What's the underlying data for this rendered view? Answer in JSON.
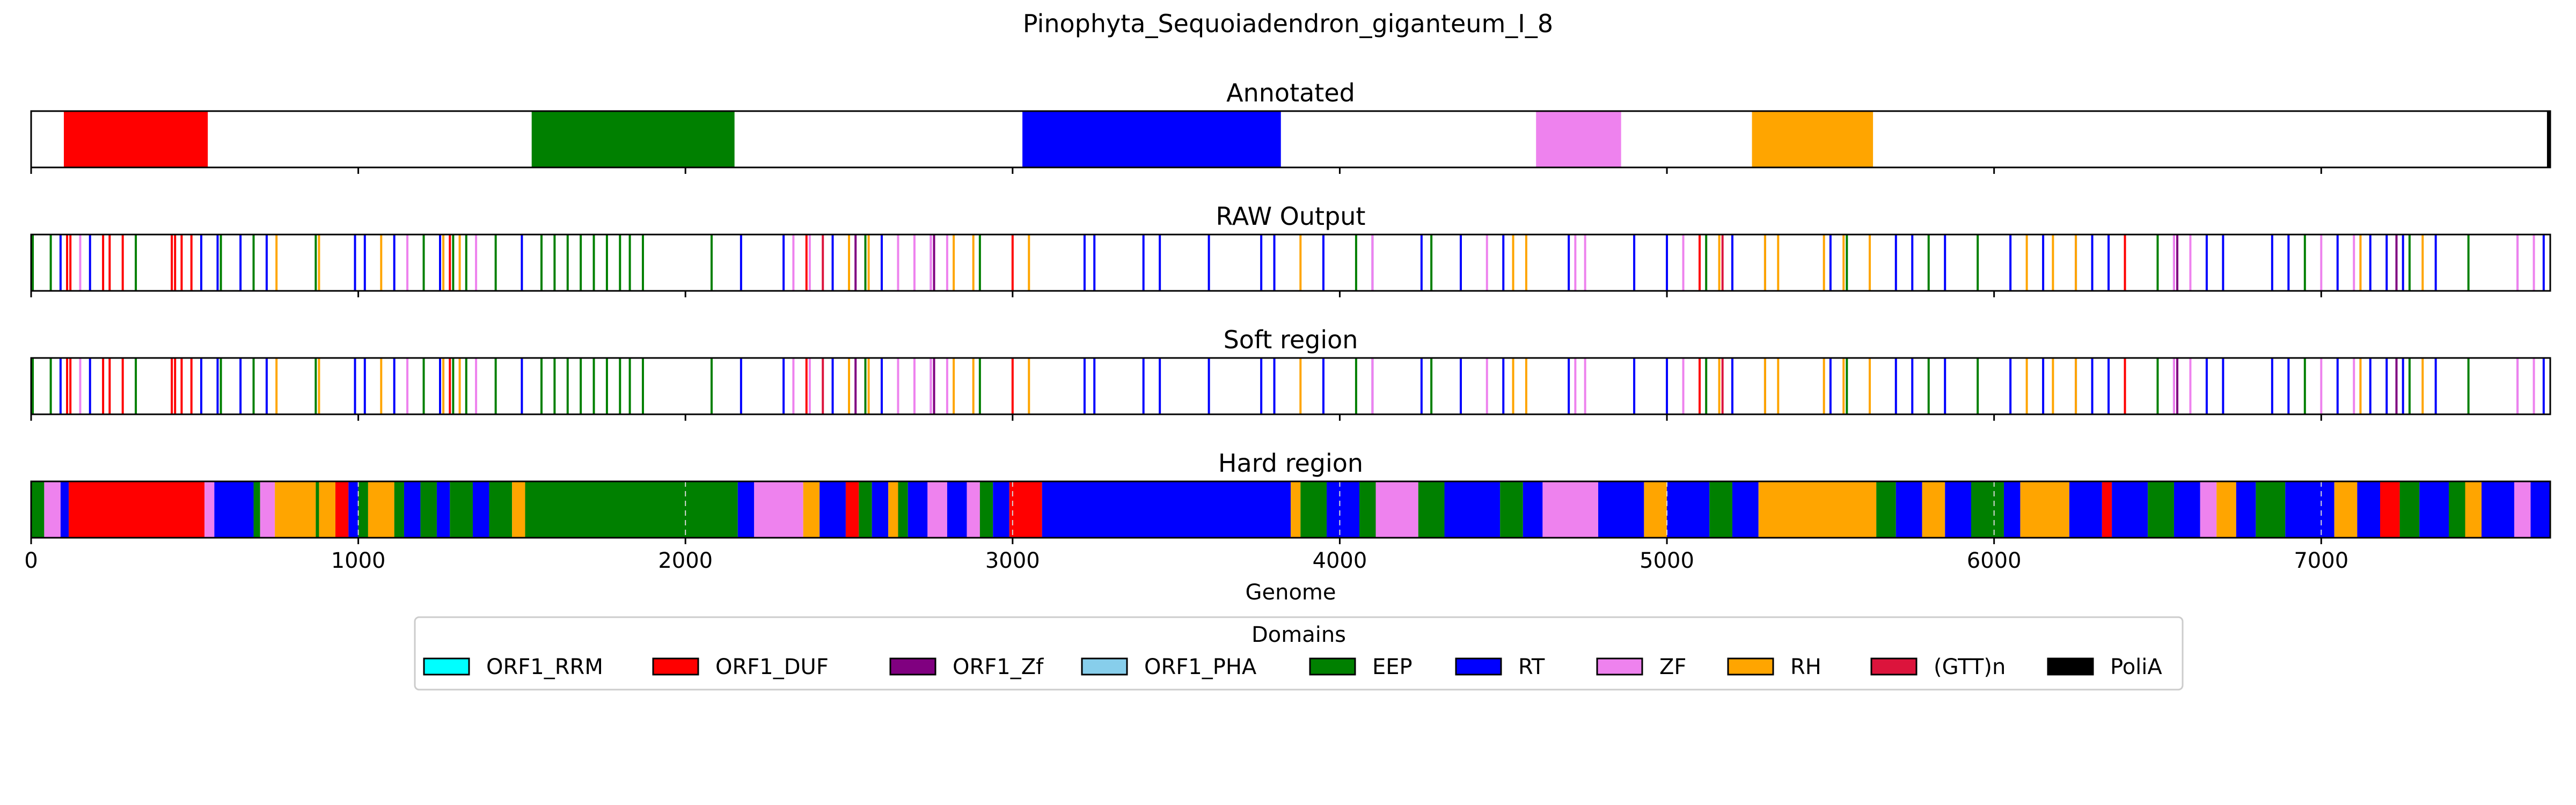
{
  "chart_data": {
    "type": "genome-track",
    "title": "Pinophyta_Sequoiadendron_giganteum_I_8",
    "xlabel": "Genome",
    "xlim": [
      0,
      7700
    ],
    "xticks": [
      0,
      1000,
      2000,
      3000,
      4000,
      5000,
      6000,
      7000
    ],
    "xtick_labels": [
      "0",
      "1000",
      "2000",
      "3000",
      "4000",
      "5000",
      "6000",
      "7000"
    ],
    "colors": {
      "ORF1_RRM": "#00ffff",
      "ORF1_DUF": "#ff0000",
      "ORF1_Zf": "#800080",
      "ORF1_PHA": "#87ceeb",
      "EEP": "#008000",
      "RT": "#0000ff",
      "ZF": "#ee82ee",
      "RH": "#ffa500",
      "(GTT)n": "#dc143c",
      "PoliA": "#000000"
    },
    "legend": {
      "title": "Domains",
      "placement": "bottom-center",
      "entries": [
        "ORF1_RRM",
        "ORF1_DUF",
        "ORF1_Zf",
        "ORF1_PHA",
        "EEP",
        "RT",
        "ZF",
        "RH",
        "(GTT)n",
        "PoliA"
      ]
    },
    "panels": [
      {
        "title": "Annotated",
        "kind": "segments",
        "segments": [
          {
            "domain": "ORF1_DUF",
            "start": 100,
            "end": 540
          },
          {
            "domain": "EEP",
            "start": 1530,
            "end": 2150
          },
          {
            "domain": "RT",
            "start": 3030,
            "end": 3820
          },
          {
            "domain": "ZF",
            "start": 4600,
            "end": 4860
          },
          {
            "domain": "RH",
            "start": 5260,
            "end": 5630
          },
          {
            "domain": "PoliA",
            "start": 7690,
            "end": 7700
          }
        ]
      },
      {
        "title": "RAW Output",
        "kind": "lines",
        "lines": [
          {
            "domain": "EEP",
            "x": [
              5,
              60,
              320,
              580,
              680,
              870,
              1200,
              1290,
              1330,
              1420,
              1560,
              1600,
              1640,
              1680,
              1720,
              1760,
              1800,
              1830,
              1870,
              2080,
              2550,
              2900,
              4050,
              4280,
              5120,
              5550,
              5800,
              5950,
              6500,
              6950,
              7270,
              7450
            ]
          },
          {
            "domain": "RT",
            "x": [
              90,
              180,
              520,
              570,
              640,
              720,
              990,
              1020,
              1110,
              1250,
              1500,
              2170,
              2300,
              2450,
              2600,
              2750,
              3220,
              3250,
              3400,
              3450,
              3600,
              3760,
              3800,
              3950,
              4100,
              4250,
              4370,
              4500,
              4700,
              4900,
              5000,
              5200,
              5300,
              5500,
              5700,
              5750,
              5850,
              6050,
              6150,
              6250,
              6300,
              6350,
              6550,
              6650,
              6700,
              6850,
              6900,
              7050,
              7150,
              7200,
              7250,
              7350,
              7600,
              7680
            ]
          },
          {
            "domain": "ORF1_DUF",
            "x": [
              110,
              120,
              220,
              240,
              280,
              430,
              440,
              460,
              490,
              1280,
              2370,
              3000,
              5100,
              6400
            ]
          },
          {
            "domain": "ZF",
            "x": [
              150,
              1150,
              1360,
              2330,
              2380,
              2650,
              2700,
              2750,
              2800,
              4100,
              4450,
              4720,
              4750,
              5050,
              6550,
              6600,
              7000,
              7100,
              7600,
              7650
            ]
          },
          {
            "domain": "RH",
            "x": [
              750,
              880,
              1070,
              1260,
              1310,
              2500,
              2560,
              2820,
              2880,
              3050,
              3880,
              4530,
              4570,
              5160,
              5300,
              5340,
              5480,
              5540,
              5620,
              6100,
              6180,
              6250,
              7120,
              7310
            ]
          },
          {
            "domain": "ORF1_Zf",
            "x": [
              2520,
              2760,
              6560,
              7230
            ]
          },
          {
            "domain": "(GTT)n",
            "x": [
              2420,
              5170
            ]
          }
        ]
      },
      {
        "title": "Soft region",
        "kind": "lines",
        "same_as": "RAW Output"
      },
      {
        "title": "Hard region",
        "kind": "segments",
        "segments": [
          {
            "domain": "EEP",
            "start": 0,
            "end": 40
          },
          {
            "domain": "ZF",
            "start": 40,
            "end": 90
          },
          {
            "domain": "RT",
            "start": 90,
            "end": 115
          },
          {
            "domain": "ORF1_DUF",
            "start": 115,
            "end": 530
          },
          {
            "domain": "ZF",
            "start": 530,
            "end": 560
          },
          {
            "domain": "RT",
            "start": 560,
            "end": 680
          },
          {
            "domain": "EEP",
            "start": 680,
            "end": 700
          },
          {
            "domain": "ZF",
            "start": 700,
            "end": 745
          },
          {
            "domain": "RH",
            "start": 745,
            "end": 870
          },
          {
            "domain": "EEP",
            "start": 870,
            "end": 880
          },
          {
            "domain": "RH",
            "start": 880,
            "end": 930
          },
          {
            "domain": "ORF1_DUF",
            "start": 930,
            "end": 970
          },
          {
            "domain": "RT",
            "start": 970,
            "end": 1000
          },
          {
            "domain": "EEP",
            "start": 1000,
            "end": 1030
          },
          {
            "domain": "RH",
            "start": 1030,
            "end": 1110
          },
          {
            "domain": "EEP",
            "start": 1110,
            "end": 1140
          },
          {
            "domain": "RT",
            "start": 1140,
            "end": 1190
          },
          {
            "domain": "EEP",
            "start": 1190,
            "end": 1240
          },
          {
            "domain": "RT",
            "start": 1240,
            "end": 1280
          },
          {
            "domain": "EEP",
            "start": 1280,
            "end": 1350
          },
          {
            "domain": "RT",
            "start": 1350,
            "end": 1400
          },
          {
            "domain": "EEP",
            "start": 1400,
            "end": 1470
          },
          {
            "domain": "RH",
            "start": 1470,
            "end": 1510
          },
          {
            "domain": "EEP",
            "start": 1510,
            "end": 2160
          },
          {
            "domain": "RT",
            "start": 2160,
            "end": 2210
          },
          {
            "domain": "ZF",
            "start": 2210,
            "end": 2360
          },
          {
            "domain": "RH",
            "start": 2360,
            "end": 2410
          },
          {
            "domain": "RT",
            "start": 2410,
            "end": 2490
          },
          {
            "domain": "ORF1_DUF",
            "start": 2490,
            "end": 2530
          },
          {
            "domain": "EEP",
            "start": 2530,
            "end": 2570
          },
          {
            "domain": "RT",
            "start": 2570,
            "end": 2620
          },
          {
            "domain": "RH",
            "start": 2620,
            "end": 2650
          },
          {
            "domain": "EEP",
            "start": 2650,
            "end": 2680
          },
          {
            "domain": "RT",
            "start": 2680,
            "end": 2740
          },
          {
            "domain": "ZF",
            "start": 2740,
            "end": 2800
          },
          {
            "domain": "RT",
            "start": 2800,
            "end": 2860
          },
          {
            "domain": "ZF",
            "start": 2860,
            "end": 2900
          },
          {
            "domain": "EEP",
            "start": 2900,
            "end": 2940
          },
          {
            "domain": "RT",
            "start": 2940,
            "end": 2990
          },
          {
            "domain": "ORF1_DUF",
            "start": 2990,
            "end": 3090
          },
          {
            "domain": "RT",
            "start": 3090,
            "end": 3850
          },
          {
            "domain": "RH",
            "start": 3850,
            "end": 3880
          },
          {
            "domain": "EEP",
            "start": 3880,
            "end": 3960
          },
          {
            "domain": "RT",
            "start": 3960,
            "end": 4060
          },
          {
            "domain": "EEP",
            "start": 4060,
            "end": 4110
          },
          {
            "domain": "ZF",
            "start": 4110,
            "end": 4240
          },
          {
            "domain": "EEP",
            "start": 4240,
            "end": 4320
          },
          {
            "domain": "RT",
            "start": 4320,
            "end": 4490
          },
          {
            "domain": "EEP",
            "start": 4490,
            "end": 4560
          },
          {
            "domain": "RT",
            "start": 4560,
            "end": 4620
          },
          {
            "domain": "ZF",
            "start": 4620,
            "end": 4790
          },
          {
            "domain": "RT",
            "start": 4790,
            "end": 4930
          },
          {
            "domain": "RH",
            "start": 4930,
            "end": 5000
          },
          {
            "domain": "RT",
            "start": 5000,
            "end": 5130
          },
          {
            "domain": "EEP",
            "start": 5130,
            "end": 5200
          },
          {
            "domain": "RT",
            "start": 5200,
            "end": 5280
          },
          {
            "domain": "RH",
            "start": 5280,
            "end": 5640
          },
          {
            "domain": "EEP",
            "start": 5640,
            "end": 5700
          },
          {
            "domain": "RT",
            "start": 5700,
            "end": 5780
          },
          {
            "domain": "RH",
            "start": 5780,
            "end": 5850
          },
          {
            "domain": "RT",
            "start": 5850,
            "end": 5930
          },
          {
            "domain": "EEP",
            "start": 5930,
            "end": 6030
          },
          {
            "domain": "RT",
            "start": 6030,
            "end": 6080
          },
          {
            "domain": "RH",
            "start": 6080,
            "end": 6230
          },
          {
            "domain": "RT",
            "start": 6230,
            "end": 6330
          },
          {
            "domain": "ORF1_DUF",
            "start": 6330,
            "end": 6360
          },
          {
            "domain": "RT",
            "start": 6360,
            "end": 6470
          },
          {
            "domain": "EEP",
            "start": 6470,
            "end": 6550
          },
          {
            "domain": "RT",
            "start": 6550,
            "end": 6630
          },
          {
            "domain": "ZF",
            "start": 6630,
            "end": 6680
          },
          {
            "domain": "RH",
            "start": 6680,
            "end": 6740
          },
          {
            "domain": "RT",
            "start": 6740,
            "end": 6800
          },
          {
            "domain": "EEP",
            "start": 6800,
            "end": 6890
          },
          {
            "domain": "RT",
            "start": 6890,
            "end": 7040
          },
          {
            "domain": "RH",
            "start": 7040,
            "end": 7110
          },
          {
            "domain": "RT",
            "start": 7110,
            "end": 7180
          },
          {
            "domain": "ORF1_DUF",
            "start": 7180,
            "end": 7240
          },
          {
            "domain": "EEP",
            "start": 7240,
            "end": 7300
          },
          {
            "domain": "RT",
            "start": 7300,
            "end": 7390
          },
          {
            "domain": "EEP",
            "start": 7390,
            "end": 7440
          },
          {
            "domain": "RH",
            "start": 7440,
            "end": 7490
          },
          {
            "domain": "RT",
            "start": 7490,
            "end": 7590
          },
          {
            "domain": "ZF",
            "start": 7590,
            "end": 7640
          },
          {
            "domain": "RT",
            "start": 7640,
            "end": 7700
          }
        ]
      }
    ]
  }
}
